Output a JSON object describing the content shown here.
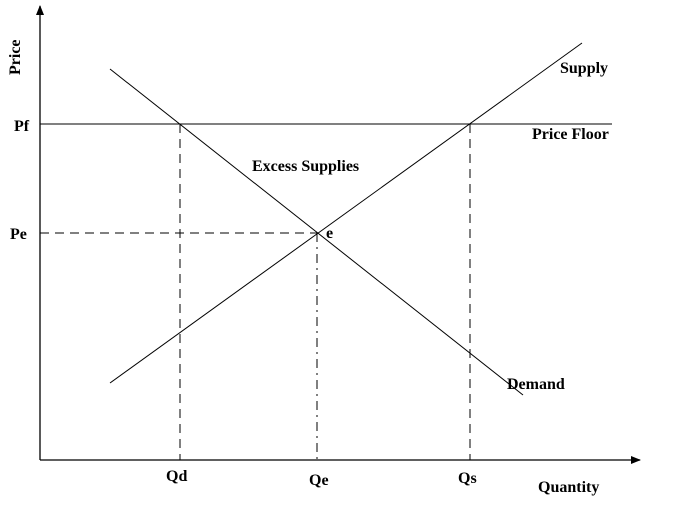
{
  "axes": {
    "y_label": "Price",
    "x_label": "Quantity"
  },
  "price_labels": {
    "floor": "Pf",
    "equilibrium": "Pe"
  },
  "quantity_labels": {
    "demanded": "Qd",
    "equilibrium": "Qe",
    "supplied": "Qs"
  },
  "curves": {
    "supply": "Supply",
    "demand": "Demand",
    "price_floor": "Price Floor"
  },
  "annotations": {
    "excess": "Excess Supplies",
    "equilibrium_point": "e"
  }
}
